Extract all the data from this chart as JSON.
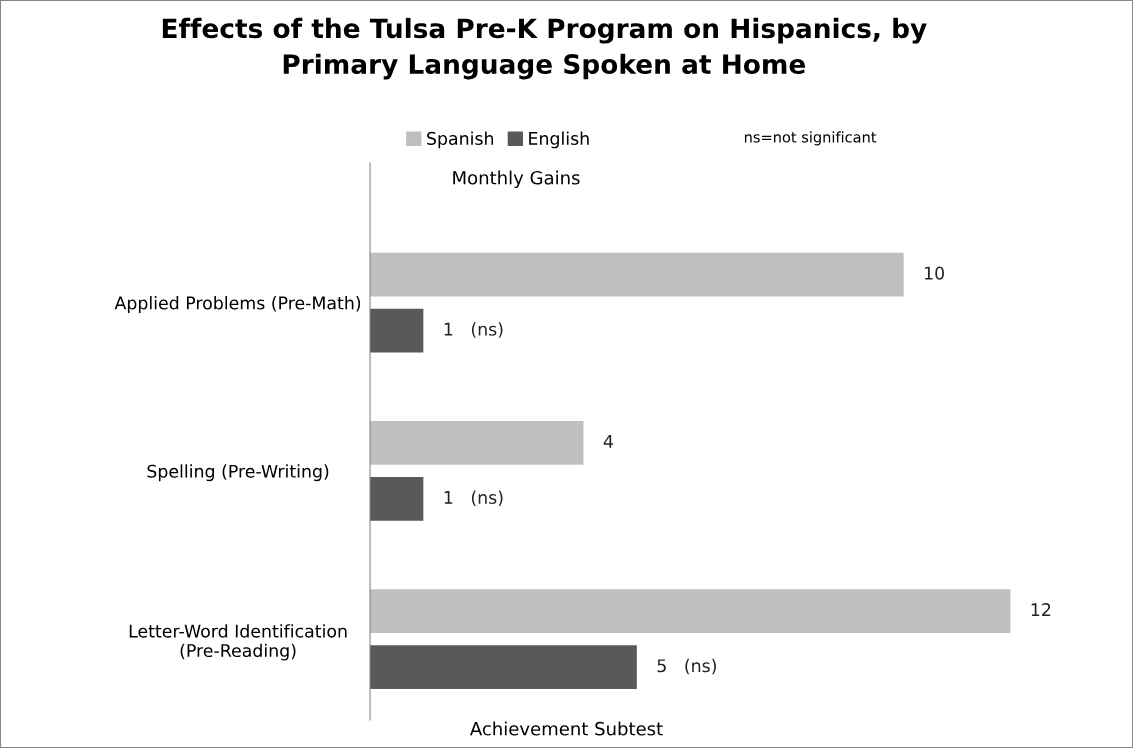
{
  "chart_data": {
    "type": "bar",
    "orientation": "horizontal",
    "title": "Effects of the Tulsa Pre-K Program on Hispanics, by\nPrimary Language Spoken at Home",
    "xlabel": "Monthly Gains",
    "categories": [
      "Applied Problems (Pre-Math)",
      "Spelling (Pre-Writing)",
      "Letter-Word Identification\n(Pre-Reading)"
    ],
    "series": [
      {
        "name": "Spanish",
        "color": "#bfbfbf",
        "values": [
          10,
          4,
          12
        ],
        "value_labels": [
          "10",
          "4",
          "12"
        ]
      },
      {
        "name": "English",
        "color": "#595959",
        "values": [
          1,
          1,
          5
        ],
        "value_labels": [
          "1   (ns)",
          "1   (ns)",
          "5   (ns)"
        ]
      }
    ],
    "legend": "top",
    "grid": false,
    "tick_labels": "y",
    "annotations": [
      "ns=not significant",
      "Achievement Subtest"
    ]
  }
}
